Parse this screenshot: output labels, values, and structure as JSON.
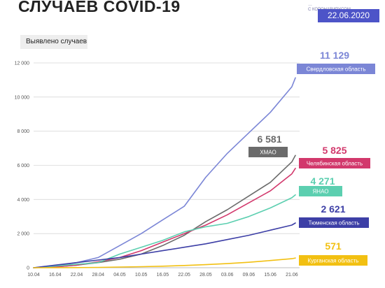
{
  "header": {
    "title": "СЛУЧАЕВ COVID-19",
    "source_line1": "…",
    "source_line2": "С КОРОНАВИРУСОМ",
    "date": "22.06.2020"
  },
  "colors": {
    "sverdlovsk": "#7b86d6",
    "hmao": "#6b6b6b",
    "chelyabinsk": "#d2386c",
    "yanao": "#5ccfb0",
    "tyumen": "#3d3fa6",
    "kurgan": "#f2c012",
    "badge": "#4d54c8"
  },
  "chart_data": {
    "type": "line",
    "title": "СЛУЧАЕВ COVID-19",
    "ylabel": "Выявлено случаев",
    "xlabel": "",
    "ylim": [
      0,
      12000
    ],
    "yticks": [
      0,
      2000,
      4000,
      6000,
      8000,
      10000,
      12000
    ],
    "ytick_labels": [
      "0",
      "2 000",
      "4 000",
      "6 000",
      "8 000",
      "10 000",
      "12 000"
    ],
    "x_tick_labels": [
      "10.04",
      "16.04",
      "22.04",
      "28.04",
      "04.05",
      "10.05",
      "16.05",
      "22.05",
      "28.05",
      "03.06",
      "09.06",
      "15.06",
      "21.06"
    ],
    "x_start": "10.04",
    "x_end": "22.06",
    "series": [
      {
        "key": "sverdlovsk",
        "name": "Свердловская область",
        "final_label": "11 129",
        "x": [
          "10.04",
          "16.04",
          "22.04",
          "28.04",
          "04.05",
          "10.05",
          "16.05",
          "22.05",
          "28.05",
          "03.06",
          "09.06",
          "15.06",
          "21.06",
          "22.06"
        ],
        "values": [
          0,
          100,
          300,
          600,
          1300,
          2000,
          2800,
          3600,
          5300,
          6700,
          7900,
          9100,
          10600,
          11129
        ]
      },
      {
        "key": "hmao",
        "name": "ХМАО",
        "final_label": "6 581",
        "x": [
          "10.04",
          "16.04",
          "22.04",
          "28.04",
          "04.05",
          "10.05",
          "16.05",
          "22.05",
          "28.05",
          "03.06",
          "09.06",
          "15.06",
          "21.06",
          "22.06"
        ],
        "values": [
          0,
          50,
          150,
          300,
          500,
          800,
          1300,
          1900,
          2700,
          3400,
          4200,
          5000,
          6200,
          6581
        ]
      },
      {
        "key": "chelyabinsk",
        "name": "Челябинская область",
        "final_label": "5 825",
        "x": [
          "10.04",
          "16.04",
          "22.04",
          "28.04",
          "04.05",
          "10.05",
          "16.05",
          "22.05",
          "28.05",
          "03.06",
          "09.06",
          "15.06",
          "21.06",
          "22.06"
        ],
        "values": [
          0,
          50,
          150,
          350,
          600,
          1000,
          1500,
          2000,
          2500,
          3100,
          3800,
          4500,
          5500,
          5825
        ]
      },
      {
        "key": "yanao",
        "name": "ЯНАО",
        "final_label": "4 271",
        "x": [
          "10.04",
          "16.04",
          "22.04",
          "28.04",
          "04.05",
          "10.05",
          "16.05",
          "22.05",
          "28.05",
          "03.06",
          "09.06",
          "15.06",
          "21.06",
          "22.06"
        ],
        "values": [
          0,
          100,
          200,
          300,
          800,
          1200,
          1600,
          2100,
          2400,
          2600,
          3000,
          3500,
          4100,
          4271
        ]
      },
      {
        "key": "tyumen",
        "name": "Тюменская область",
        "final_label": "2 621",
        "x": [
          "10.04",
          "16.04",
          "22.04",
          "28.04",
          "04.05",
          "10.05",
          "16.05",
          "22.05",
          "28.05",
          "03.06",
          "09.06",
          "15.06",
          "21.06",
          "22.06"
        ],
        "values": [
          0,
          150,
          300,
          450,
          600,
          800,
          1000,
          1200,
          1400,
          1650,
          1900,
          2200,
          2500,
          2621
        ]
      },
      {
        "key": "kurgan",
        "name": "Курганская область",
        "final_label": "571",
        "x": [
          "10.04",
          "16.04",
          "22.04",
          "28.04",
          "04.05",
          "10.05",
          "16.05",
          "22.05",
          "28.05",
          "03.06",
          "09.06",
          "15.06",
          "21.06",
          "22.06"
        ],
        "values": [
          0,
          5,
          10,
          20,
          40,
          60,
          90,
          130,
          180,
          240,
          320,
          420,
          530,
          571
        ]
      }
    ]
  }
}
